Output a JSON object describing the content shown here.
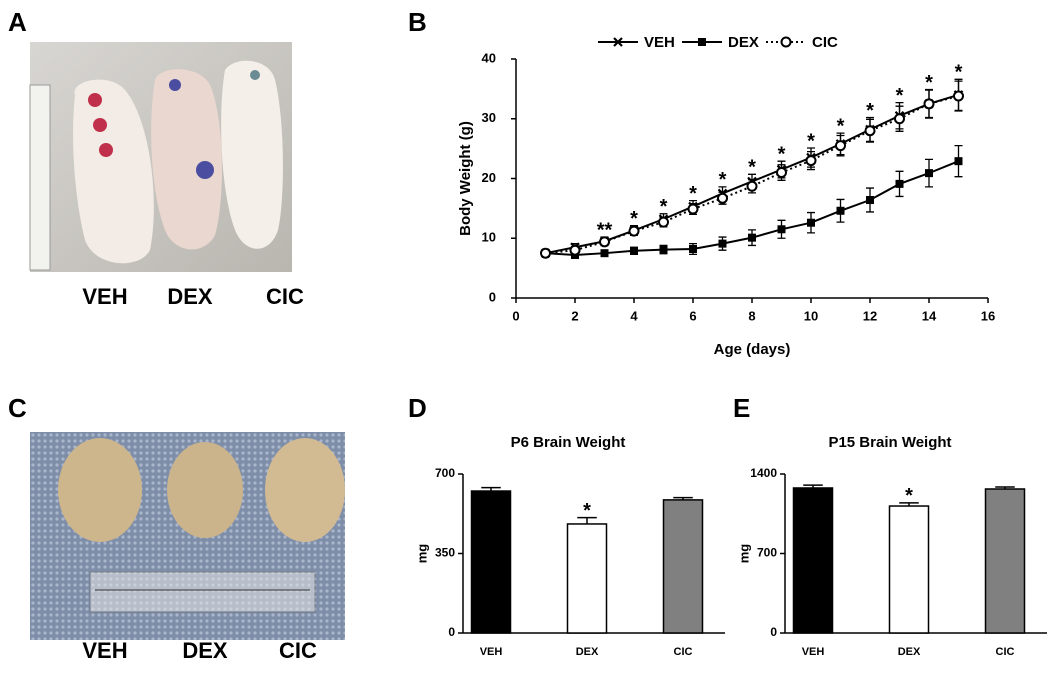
{
  "panels": {
    "A": {
      "letter": "A",
      "labels": [
        "VEH",
        "DEX",
        "CIC"
      ]
    },
    "C": {
      "letter": "C",
      "labels": [
        "VEH",
        "DEX",
        "CIC"
      ]
    }
  },
  "chart_data": [
    {
      "type": "line",
      "letter": "B",
      "xlabel": "Age (days)",
      "ylabel": "Body Weight (g)",
      "x": [
        1,
        2,
        3,
        4,
        5,
        6,
        7,
        8,
        9,
        10,
        11,
        12,
        13,
        14,
        15
      ],
      "series": [
        {
          "name": "VEH",
          "color": "#000000",
          "marker": "x",
          "line_style": "solid",
          "values": [
            7.5,
            8.5,
            9.5,
            11.3,
            13.2,
            15.3,
            17.5,
            19.5,
            21.5,
            23.5,
            25.8,
            28.2,
            30.5,
            32.5,
            34
          ],
          "errors": [
            0.5,
            0.6,
            0.7,
            0.8,
            0.9,
            1,
            1.1,
            1.2,
            1.4,
            1.6,
            1.8,
            2,
            2.2,
            2.4,
            2.6
          ]
        },
        {
          "name": "DEX",
          "color": "#000000",
          "marker": "square",
          "line_style": "solid",
          "values": [
            7.5,
            7.2,
            7.5,
            7.9,
            8.1,
            8.2,
            9.1,
            10.1,
            11.5,
            12.6,
            14.6,
            16.4,
            19.1,
            20.9,
            22.9
          ],
          "errors": [
            0.5,
            0.5,
            0.5,
            0.6,
            0.7,
            0.9,
            1.1,
            1.3,
            1.5,
            1.7,
            1.9,
            2,
            2.1,
            2.3,
            2.6
          ]
        },
        {
          "name": "CIC",
          "color": "#000000",
          "marker": "circle",
          "line_style": "dotted",
          "values": [
            7.5,
            8,
            9.4,
            11.2,
            12.7,
            14.9,
            16.7,
            18.7,
            21,
            23,
            25.5,
            28,
            30,
            32.5,
            33.8
          ],
          "errors": [
            0.5,
            0.5,
            0.6,
            0.7,
            0.8,
            0.9,
            1,
            1.1,
            1.3,
            1.5,
            1.7,
            1.9,
            2.1,
            2.3,
            2.5
          ]
        }
      ],
      "annotations": [
        {
          "x": 3,
          "text": "**"
        },
        {
          "x": 4,
          "text": "*"
        },
        {
          "x": 5,
          "text": "*"
        },
        {
          "x": 6,
          "text": "*"
        },
        {
          "x": 7,
          "text": "*"
        },
        {
          "x": 8,
          "text": "*"
        },
        {
          "x": 9,
          "text": "*"
        },
        {
          "x": 10,
          "text": "*"
        },
        {
          "x": 11,
          "text": "*"
        },
        {
          "x": 12,
          "text": "*"
        },
        {
          "x": 13,
          "text": "*"
        },
        {
          "x": 14,
          "text": "*"
        },
        {
          "x": 15,
          "text": "*"
        }
      ],
      "xlim": [
        0,
        16
      ],
      "xticks": [
        0,
        2,
        4,
        6,
        8,
        10,
        12,
        14,
        16
      ],
      "ylim": [
        0,
        40
      ],
      "yticks": [
        0,
        10,
        20,
        30,
        40
      ],
      "grid": false,
      "legend": "top"
    },
    {
      "type": "bar",
      "letter": "D",
      "title": "P6 Brain Weight",
      "ylabel": "mg",
      "categories": [
        "VEH",
        "DEX",
        "CIC"
      ],
      "values": [
        625,
        480,
        586
      ],
      "errors": [
        15,
        28,
        10
      ],
      "colors": [
        "#000000",
        "#ffffff",
        "#808080"
      ],
      "annotations": [
        {
          "category": 1,
          "text": "*"
        }
      ],
      "ylim": [
        0,
        700
      ],
      "yticks": [
        0,
        350,
        700
      ],
      "grid": false
    },
    {
      "type": "bar",
      "letter": "E",
      "title": "P15 Brain Weight",
      "ylabel": "mg",
      "categories": [
        "VEH",
        "DEX",
        "CIC"
      ],
      "values": [
        1277,
        1118,
        1268
      ],
      "errors": [
        25,
        28,
        18
      ],
      "colors": [
        "#000000",
        "#ffffff",
        "#808080"
      ],
      "annotations": [
        {
          "category": 1,
          "text": "*"
        }
      ],
      "ylim": [
        0,
        1400
      ],
      "yticks": [
        0,
        700,
        1400
      ],
      "grid": false
    }
  ]
}
